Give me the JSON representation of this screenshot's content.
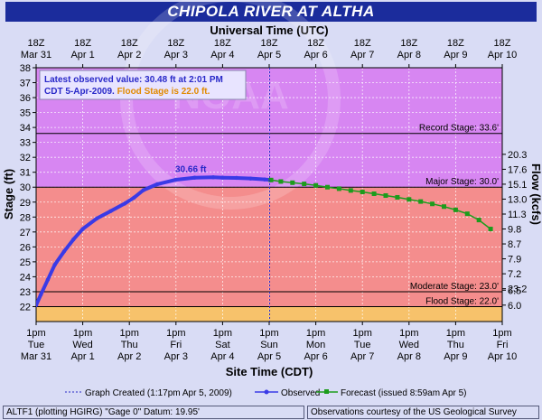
{
  "header": {
    "title": "CHIPOLA RIVER  AT ALTHA"
  },
  "footer": {
    "left": "ALTF1 (plotting HGIRG)  \"Gage 0\" Datum: 19.95'",
    "right": "Observations courtesy of the  US Geological Survey"
  },
  "info_box": {
    "line1": "Latest observed value: 30.48 ft at 2:01 PM",
    "line2a": "CDT 5-Apr-2009. ",
    "line2b": "Flood Stage is 22.0 ft."
  },
  "colors": {
    "title_bg": "#1b2c9c",
    "flood_zone": "#f7c26b",
    "moderate_zone": "#f48d8d",
    "record_zone": "#d786f2",
    "observed": "#3a3ae6",
    "forecast": "#1c9c1c",
    "info_blue": "#2828c8",
    "info_orange": "#e08a00"
  },
  "watermark": "NOAA",
  "chart_data": {
    "type": "line",
    "title": "CHIPOLA RIVER  AT ALTHA",
    "top_axis_title": "Universal Time (UTC)",
    "xlabel": "Site Time (CDT)",
    "ylabel": "Stage (ft)",
    "y2label": "Flow (kcfs)",
    "ylim": [
      21,
      38
    ],
    "yticks": [
      22,
      23,
      24,
      25,
      26,
      27,
      28,
      29,
      30,
      31,
      32,
      33,
      34,
      35,
      36,
      37,
      38
    ],
    "xlim_days": [
      0,
      10
    ],
    "bottom_ticks": [
      {
        "top": "1pm",
        "mid": "Tue",
        "bot": "Mar 31"
      },
      {
        "top": "1pm",
        "mid": "Wed",
        "bot": "Apr 1"
      },
      {
        "top": "1pm",
        "mid": "Thu",
        "bot": "Apr 2"
      },
      {
        "top": "1pm",
        "mid": "Fri",
        "bot": "Apr 3"
      },
      {
        "top": "1pm",
        "mid": "Sat",
        "bot": "Apr 4"
      },
      {
        "top": "1pm",
        "mid": "Sun",
        "bot": "Apr 5"
      },
      {
        "top": "1pm",
        "mid": "Mon",
        "bot": "Apr 6"
      },
      {
        "top": "1pm",
        "mid": "Tue",
        "bot": "Apr 7"
      },
      {
        "top": "1pm",
        "mid": "Wed",
        "bot": "Apr 8"
      },
      {
        "top": "1pm",
        "mid": "Thu",
        "bot": "Apr 9"
      },
      {
        "top": "1pm",
        "mid": "Fri",
        "bot": "Apr 10"
      }
    ],
    "top_ticks": [
      {
        "top": "18Z",
        "bot": "Mar 31"
      },
      {
        "top": "18Z",
        "bot": "Apr 1"
      },
      {
        "top": "18Z",
        "bot": "Apr 2"
      },
      {
        "top": "18Z",
        "bot": "Apr 3"
      },
      {
        "top": "18Z",
        "bot": "Apr 4"
      },
      {
        "top": "18Z",
        "bot": "Apr 5"
      },
      {
        "top": "18Z",
        "bot": "Apr 6"
      },
      {
        "top": "18Z",
        "bot": "Apr 7"
      },
      {
        "top": "18Z",
        "bot": "Apr 8"
      },
      {
        "top": "18Z",
        "bot": "Apr 9"
      },
      {
        "top": "18Z",
        "bot": "Apr 10"
      }
    ],
    "flow_ticks": [
      {
        "stage": 23.2,
        "label": "23.2"
      },
      {
        "stage": 32.2,
        "label": "20.3"
      },
      {
        "stage": 31.2,
        "label": "17.6"
      },
      {
        "stage": 30.2,
        "label": "15.1"
      },
      {
        "stage": 29.2,
        "label": "13.0"
      },
      {
        "stage": 28.2,
        "label": "11.3"
      },
      {
        "stage": 27.2,
        "label": "9.8"
      },
      {
        "stage": 26.2,
        "label": "8.7"
      },
      {
        "stage": 25.2,
        "label": "7.9"
      },
      {
        "stage": 24.2,
        "label": "7.2"
      },
      {
        "stage": 23.1,
        "label": "6.5"
      },
      {
        "stage": 22.1,
        "label": "6.0"
      }
    ],
    "stages": [
      {
        "name": "Flood Stage",
        "value": 22.0,
        "label": "Flood Stage: 22.0'"
      },
      {
        "name": "Moderate Stage",
        "value": 23.0,
        "label": "Moderate Stage: 23.0'"
      },
      {
        "name": "Major Stage",
        "value": 30.0,
        "label": "Major Stage: 30.0'"
      },
      {
        "name": "Record Stage",
        "value": 33.6,
        "label": "Record Stage: 33.6'"
      }
    ],
    "observed": {
      "name": "Observed",
      "x": [
        0.0,
        0.1,
        0.25,
        0.4,
        0.6,
        0.8,
        1.0,
        1.3,
        1.6,
        1.9,
        2.1,
        2.3,
        2.6,
        3.0,
        3.4,
        3.8,
        4.0,
        4.3,
        4.6,
        4.9,
        5.04
      ],
      "y": [
        22.1,
        22.8,
        23.8,
        24.8,
        25.7,
        26.5,
        27.2,
        27.9,
        28.4,
        28.9,
        29.3,
        29.8,
        30.2,
        30.5,
        30.64,
        30.66,
        30.64,
        30.62,
        30.58,
        30.52,
        30.48
      ],
      "peak_label": "30.66 ft",
      "peak_x": 3.9,
      "peak_y": 30.66
    },
    "forecast": {
      "name": "Forecast (issued 8:59am Apr 5)",
      "x": [
        5.04,
        5.25,
        5.5,
        5.75,
        6.0,
        6.25,
        6.5,
        6.75,
        7.0,
        7.25,
        7.5,
        7.75,
        8.0,
        8.25,
        8.5,
        8.75,
        9.0,
        9.25,
        9.5,
        9.75
      ],
      "y": [
        30.48,
        30.38,
        30.3,
        30.22,
        30.12,
        30.0,
        29.9,
        29.78,
        29.68,
        29.56,
        29.44,
        29.32,
        29.18,
        29.04,
        28.88,
        28.7,
        28.48,
        28.22,
        27.8,
        27.2
      ]
    },
    "graph_created": {
      "x": 5.01,
      "label": "Graph Created (1:17pm Apr 5, 2009)"
    }
  }
}
